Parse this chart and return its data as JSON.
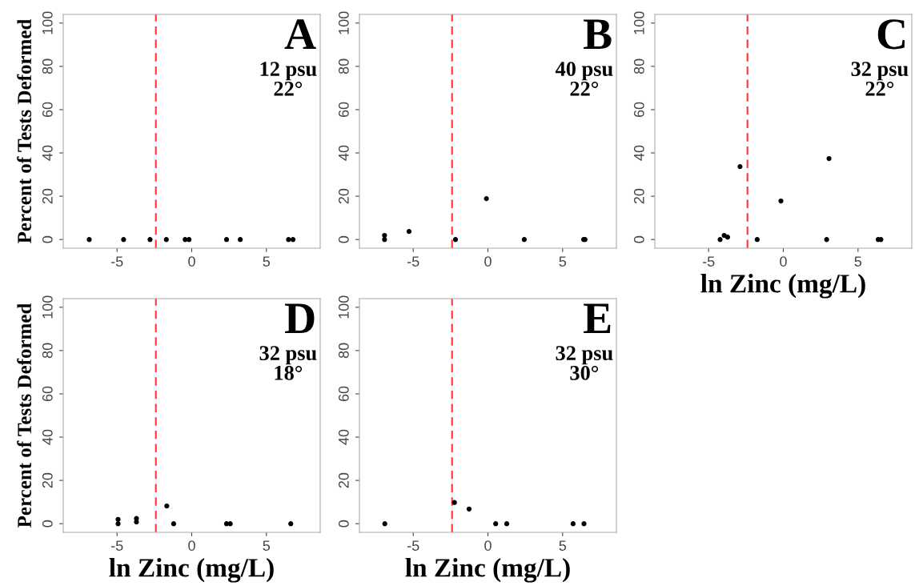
{
  "chart_data": [
    {
      "type": "scatter",
      "ylabel": "Percent of Tests Deformed",
      "annotations": [
        "A",
        "12 psu",
        "22°"
      ],
      "x": [
        -6.86,
        -4.56,
        -2.79,
        -1.7,
        -0.44,
        -0.18,
        2.33,
        3.25,
        6.48,
        6.78
      ],
      "series": [
        {
          "color": "#000000",
          "values": [
            0,
            0,
            0,
            0,
            0,
            0,
            0,
            0,
            0,
            0
          ]
        }
      ],
      "xlim": [
        -8.6,
        8.6
      ],
      "ylim": [
        -4,
        104
      ],
      "xticks": [
        -5,
        0,
        5
      ],
      "yticks": [
        0,
        20,
        40,
        60,
        80,
        100
      ],
      "ref_lines": [
        {
          "axis": "x",
          "value": -2.4,
          "color": "#ff3333",
          "line_style": "dashed"
        }
      ],
      "marker": "circle",
      "grid": false,
      "legend": false
    },
    {
      "type": "scatter",
      "annotations": [
        "B",
        "40 psu",
        "22°"
      ],
      "x": [
        -6.92,
        -6.92,
        -5.28,
        -2.17,
        -0.1,
        2.43,
        6.41,
        6.5
      ],
      "series": [
        {
          "color": "#000000",
          "values": [
            1.9,
            0,
            3.7,
            0,
            18.9,
            0,
            0,
            0
          ]
        }
      ],
      "xlim": [
        -8.6,
        8.6
      ],
      "ylim": [
        -4,
        104
      ],
      "xticks": [
        -5,
        0,
        5
      ],
      "yticks": [
        0,
        20,
        40,
        60,
        80,
        100
      ],
      "ref_lines": [
        {
          "axis": "x",
          "value": -2.4,
          "color": "#ff3333",
          "line_style": "dashed"
        }
      ],
      "marker": "circle",
      "grid": false,
      "legend": false
    },
    {
      "type": "scatter",
      "xlabel": "ln Zinc (mg/L)",
      "annotations": [
        "C",
        "32 psu",
        "22°"
      ],
      "x": [
        -4.23,
        -3.96,
        -3.73,
        -2.9,
        -1.75,
        -0.16,
        2.9,
        3.06,
        6.35,
        6.53
      ],
      "series": [
        {
          "color": "#000000",
          "values": [
            0,
            1.9,
            1.1,
            33.7,
            0,
            17.8,
            0,
            37.4,
            0,
            0
          ]
        }
      ],
      "xlim": [
        -8.6,
        8.6
      ],
      "ylim": [
        -4,
        104
      ],
      "xticks": [
        -5,
        0,
        5
      ],
      "yticks": [
        0,
        20,
        40,
        60,
        80,
        100
      ],
      "ref_lines": [
        {
          "axis": "x",
          "value": -2.4,
          "color": "#ff3333",
          "line_style": "dashed"
        }
      ],
      "marker": "circle",
      "grid": false,
      "legend": false
    },
    {
      "type": "scatter",
      "xlabel": "ln Zinc (mg/L)",
      "ylabel": "Percent of Tests Deformed",
      "annotations": [
        "D",
        "32 psu",
        "18°"
      ],
      "x": [
        -4.93,
        -4.93,
        -3.7,
        -3.7,
        -1.67,
        -1.21,
        2.33,
        2.58,
        6.63
      ],
      "series": [
        {
          "color": "#000000",
          "values": [
            0,
            2,
            2.4,
            0.8,
            8.2,
            0,
            0,
            0,
            0
          ]
        }
      ],
      "xlim": [
        -8.6,
        8.6
      ],
      "ylim": [
        -4,
        104
      ],
      "xticks": [
        -5,
        0,
        5
      ],
      "yticks": [
        0,
        20,
        40,
        60,
        80,
        100
      ],
      "ref_lines": [
        {
          "axis": "x",
          "value": -2.4,
          "color": "#ff3333",
          "line_style": "dashed"
        }
      ],
      "marker": "circle",
      "grid": false,
      "legend": false
    },
    {
      "type": "scatter",
      "xlabel": "ln Zinc (mg/L)",
      "annotations": [
        "E",
        "32 psu",
        "30°"
      ],
      "x": [
        -6.9,
        -2.24,
        -1.26,
        0.52,
        1.26,
        5.7,
        6.43
      ],
      "series": [
        {
          "color": "#000000",
          "values": [
            0,
            9.8,
            6.8,
            0,
            0,
            0,
            0
          ]
        }
      ],
      "xlim": [
        -8.6,
        8.6
      ],
      "ylim": [
        -4,
        104
      ],
      "xticks": [
        -5,
        0,
        5
      ],
      "yticks": [
        0,
        20,
        40,
        60,
        80,
        100
      ],
      "ref_lines": [
        {
          "axis": "x",
          "value": -2.4,
          "color": "#ff3333",
          "line_style": "dashed"
        }
      ],
      "marker": "circle",
      "grid": false,
      "legend": false
    }
  ]
}
